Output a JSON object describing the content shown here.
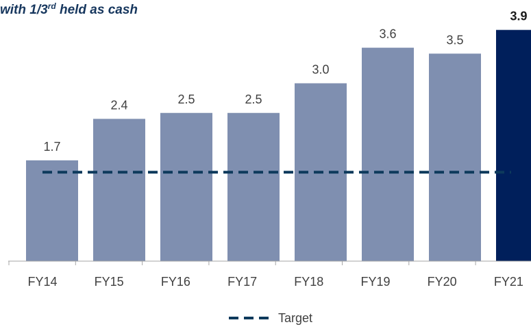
{
  "chart_data": {
    "type": "bar",
    "title_parts": [
      "with 1/3",
      "rd",
      " held as cash"
    ],
    "categories": [
      "FY14",
      "FY15",
      "FY16",
      "FY17",
      "FY18",
      "FY19",
      "FY20",
      "FY21"
    ],
    "values": [
      1.7,
      2.4,
      2.5,
      2.5,
      3.0,
      3.6,
      3.5,
      3.9
    ],
    "value_labels": [
      "1.7",
      "2.4",
      "2.5",
      "2.5",
      "3.0",
      "3.6",
      "3.5",
      "3.9"
    ],
    "colors": [
      "#7f8fb0",
      "#7f8fb0",
      "#7f8fb0",
      "#7f8fb0",
      "#7f8fb0",
      "#7f8fb0",
      "#7f8fb0",
      "#001f5b"
    ],
    "ylim": [
      0,
      4
    ],
    "target": {
      "name": "Target",
      "value": 1.5,
      "color": "#0d3a5c"
    },
    "legend": "bottom"
  }
}
